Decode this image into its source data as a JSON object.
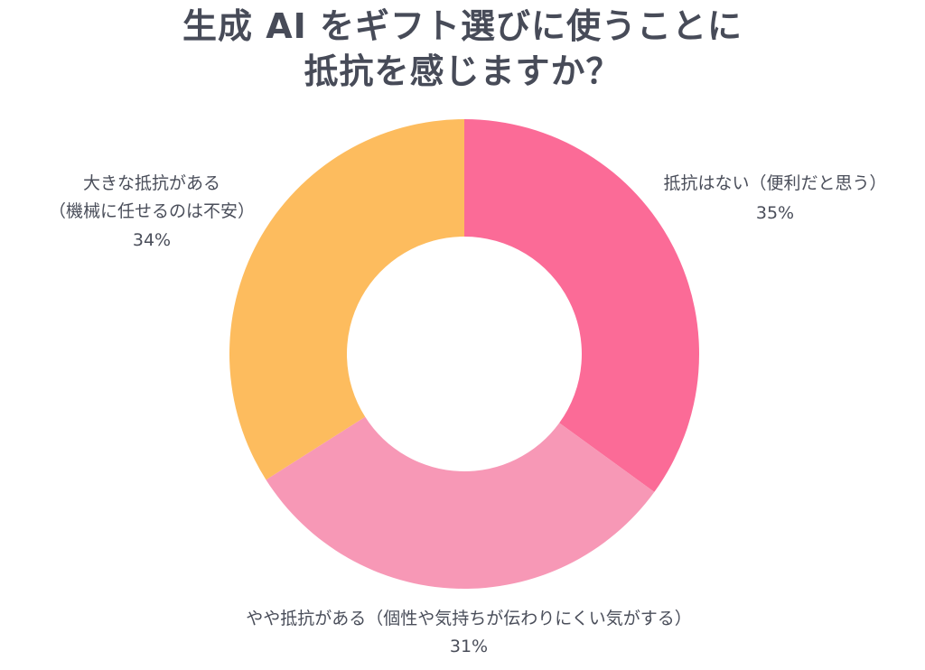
{
  "title": {
    "line1": "生成 AI をギフト選びに使うことに",
    "line2": "抵抗を感じますか？"
  },
  "chart_data": {
    "type": "pie",
    "donut": true,
    "slices": [
      {
        "label": "抵抗はない（便利だと思う）",
        "value": 35,
        "display": "35%",
        "color": "#fb6b97"
      },
      {
        "label": "やや抵抗がある（個性や気持ちが伝わりにくい気がする）",
        "value": 31,
        "display": "31%",
        "color": "#f798b6"
      },
      {
        "label": "大きな抵抗がある（機械に任せるのは不安）",
        "label_lines": [
          "大きな抵抗がある",
          "（機械に任せるのは不安）"
        ],
        "value": 34,
        "display": "34%",
        "color": "#fdbc5e"
      }
    ]
  }
}
